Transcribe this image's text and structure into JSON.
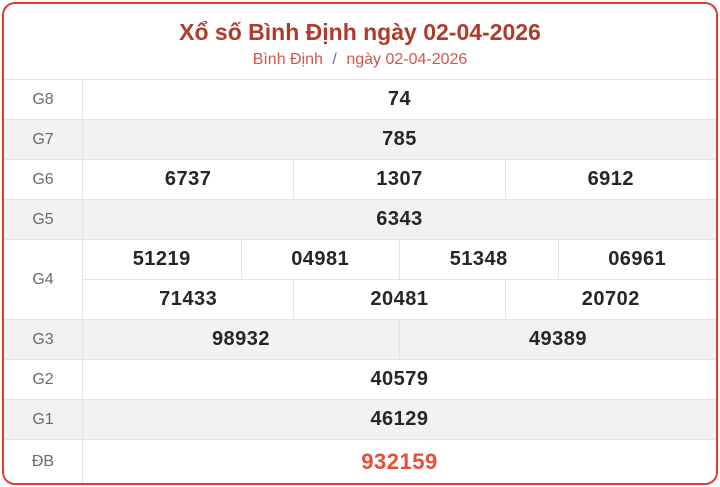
{
  "header": {
    "title": "Xổ số Bình Định ngày 02-04-2026",
    "breadcrumb": {
      "province": "Bình Định",
      "separator": "/",
      "date": "ngày 02-04-2026"
    }
  },
  "table": {
    "rows": [
      {
        "label": "G8",
        "lines": [
          [
            "74"
          ]
        ]
      },
      {
        "label": "G7",
        "lines": [
          [
            "785"
          ]
        ]
      },
      {
        "label": "G6",
        "lines": [
          [
            "6737",
            "1307",
            "6912"
          ]
        ]
      },
      {
        "label": "G5",
        "lines": [
          [
            "6343"
          ]
        ]
      },
      {
        "label": "G4",
        "lines": [
          [
            "51219",
            "04981",
            "51348",
            "06961"
          ],
          [
            "71433",
            "20481",
            "20702"
          ]
        ]
      },
      {
        "label": "G3",
        "lines": [
          [
            "98932",
            "49389"
          ]
        ]
      },
      {
        "label": "G2",
        "lines": [
          [
            "40579"
          ]
        ]
      },
      {
        "label": "G1",
        "lines": [
          [
            "46129"
          ]
        ]
      },
      {
        "label": "ĐB",
        "lines": [
          [
            "932159"
          ]
        ],
        "special": true
      }
    ]
  },
  "colors": {
    "border_red": "#e13a2e",
    "title_red": "#b23a2b",
    "subtitle_red": "#d95348",
    "separator_blue": "#4a77b4",
    "special_red": "#ee4b35",
    "row_shade": "#f2f2f3",
    "cell_border": "#e4e4e6",
    "label_gray": "#6b6b6b",
    "number_dark": "#262626"
  }
}
